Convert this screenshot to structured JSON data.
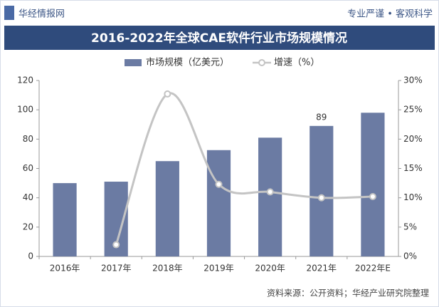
{
  "chart_data": {
    "type": "bar-line",
    "brand": "华经情报网",
    "slogan": "专业严谨 • 客观科学",
    "title": "2016-2022年全球CAE软件行业市场规模情况",
    "source": "资料来源：公开资料；华经产业研究院整理",
    "categories": [
      "2016年",
      "2017年",
      "2018年",
      "2019年",
      "2020年",
      "2021年",
      "2022年E"
    ],
    "series": [
      {
        "name": "市场规模（亿美元）",
        "type": "bar",
        "color": "#6b7ba3",
        "values": [
          50,
          51,
          65,
          72.5,
          81,
          89,
          98
        ],
        "value_labels": [
          null,
          null,
          null,
          null,
          null,
          "89",
          null
        ]
      },
      {
        "name": "增速（%）",
        "type": "line",
        "axis": "y2",
        "color": "#c4c4c4",
        "values": [
          null,
          2,
          27.7,
          12.3,
          11,
          10,
          10.2
        ]
      }
    ],
    "ylim": [
      0,
      120
    ],
    "yticks": [
      0,
      20,
      40,
      60,
      80,
      100,
      120
    ],
    "y2lim": [
      0,
      30
    ],
    "y2ticks": [
      {
        "value": 0,
        "label": "0%"
      },
      {
        "value": 5,
        "label": "5%"
      },
      {
        "value": 10,
        "label": "10%"
      },
      {
        "value": 15,
        "label": "15%"
      },
      {
        "value": 20,
        "label": "20%"
      },
      {
        "value": 25,
        "label": "25%"
      },
      {
        "value": 30,
        "label": "30%"
      }
    ],
    "legend": "top"
  }
}
